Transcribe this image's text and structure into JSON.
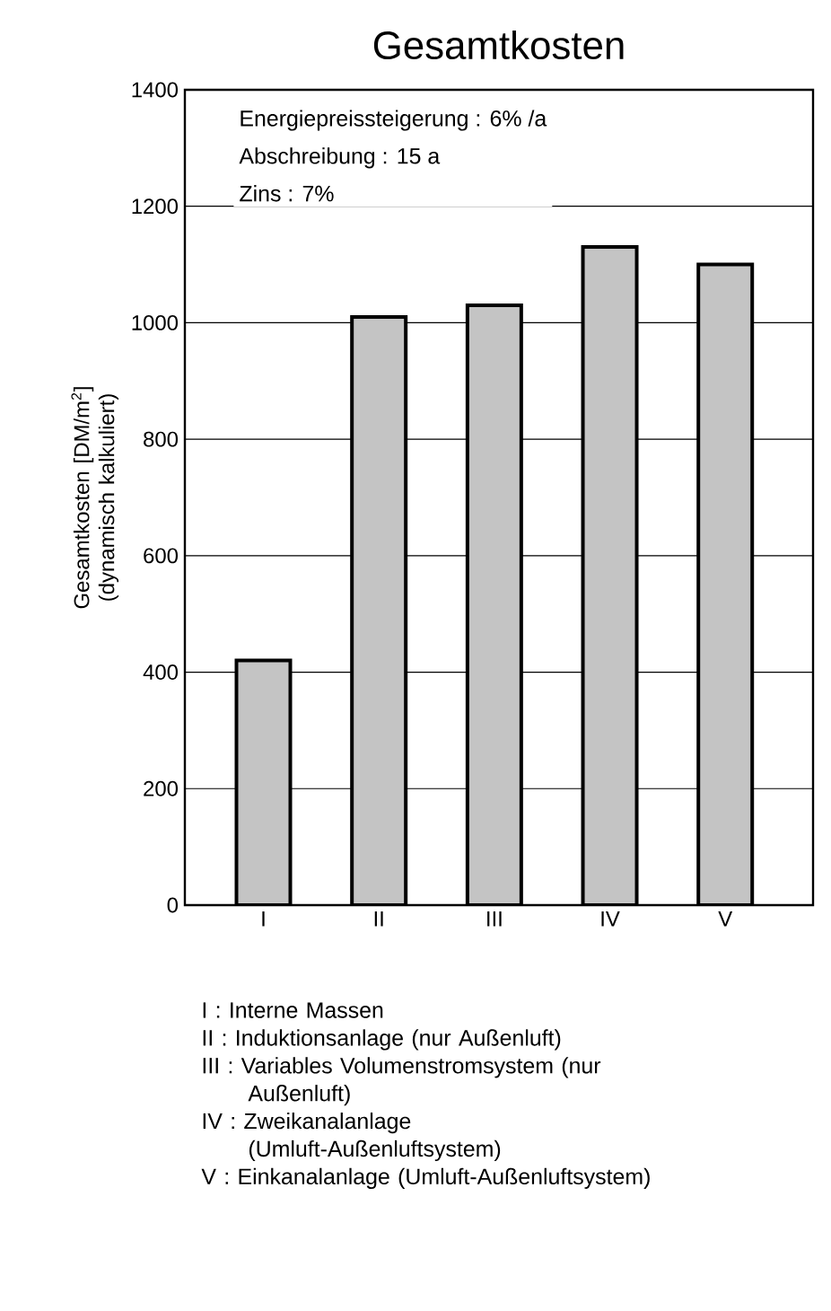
{
  "chart_data": {
    "type": "bar",
    "title": "Gesamtkosten",
    "ylabel": "Gesamtkosten [DM/m$^{2}$] (dynamisch kalkuliert)",
    "categories": [
      "I",
      "II",
      "III",
      "IV",
      "V"
    ],
    "values": [
      420,
      1010,
      1030,
      1130,
      1100
    ],
    "color": "#c4c4c4",
    "ylim": [
      0,
      1400
    ],
    "yticks": [
      0,
      200,
      400,
      600,
      800,
      1000,
      1200,
      1400
    ],
    "grid": "y",
    "annotations": [
      "Energiepreissteigerung : 6% /a",
      "Abschreibung : 15 a",
      "Zins : 7%",
      "I : Interne Massen",
      "II : Induktionsanlage (nur Außenluft)",
      "III : Variables Volumenstromsystem (nur Außenluft)",
      "IV : Zweikanalanlage (Umluft-Außenluftsystem)",
      "V : Einkanalanlage (Umluft-Außenluftsystem)"
    ]
  }
}
